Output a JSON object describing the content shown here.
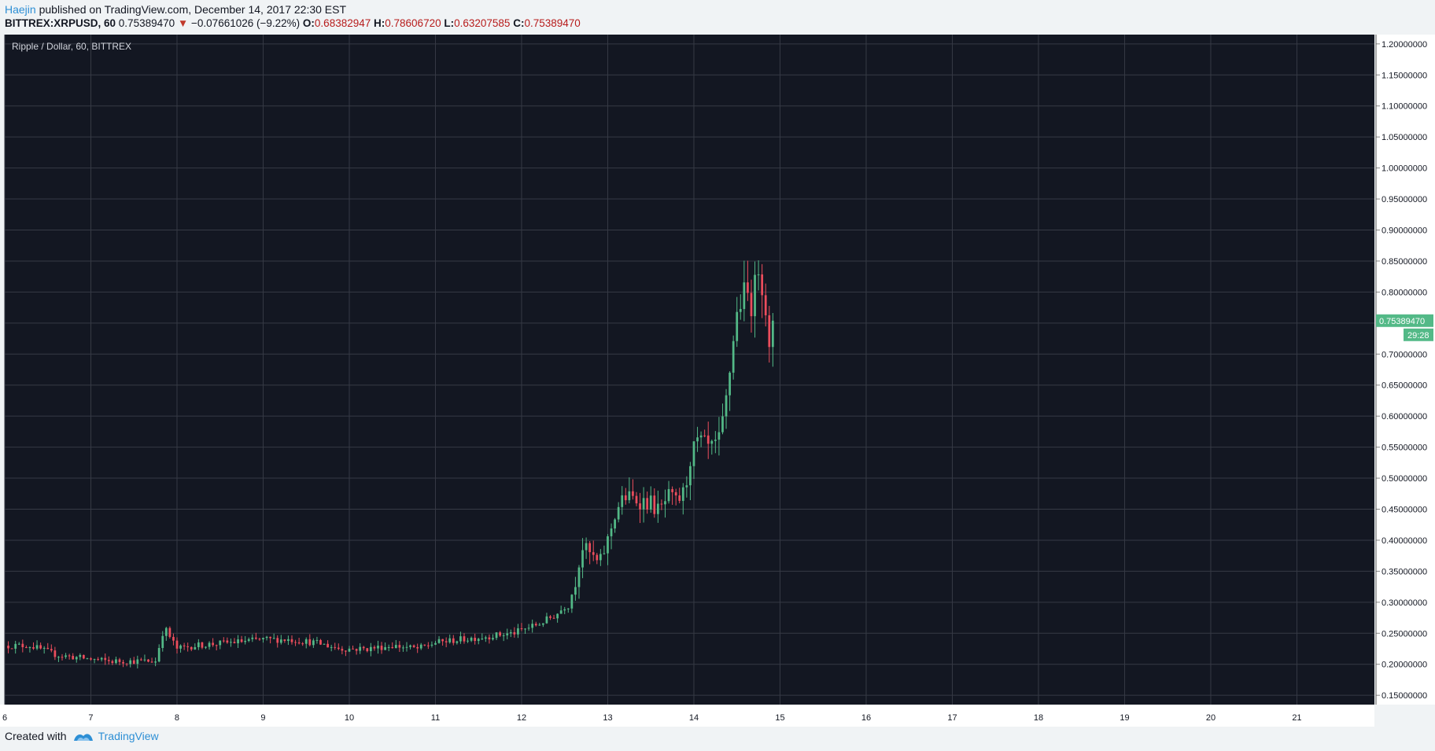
{
  "header": {
    "author": "Haejin",
    "published_text": "published on TradingView.com, December 14, 2017 22:30 EST",
    "symbol": "BITTREX:XRPUSD, 60",
    "last_price": "0.75389470",
    "change_arrow": "▼",
    "change": "−0.07661026 (−9.22%)",
    "o_label": "O:",
    "o_value": "0.68382947",
    "h_label": "H:",
    "h_value": "0.78606720",
    "l_label": "L:",
    "l_value": "0.63207585",
    "c_label": "C:",
    "c_value": "0.75389470"
  },
  "footer": {
    "created_with": "Created with",
    "brand": "TradingView"
  },
  "colors": {
    "background": "#131722",
    "grid": "#363a45",
    "up": "#53b987",
    "down": "#eb4d5c",
    "axis_text": "#131722",
    "price_tag": "#53b987"
  },
  "chart_data": {
    "type": "candlestick",
    "title": "Ripple / Dollar, 60, BITTREX",
    "x_tick_labels": [
      "6",
      "7",
      "8",
      "9",
      "10",
      "11",
      "12",
      "13",
      "14",
      "15",
      "16",
      "17",
      "18",
      "19",
      "20",
      "21"
    ],
    "y_tick_labels": [
      "0.15000000",
      "0.20000000",
      "0.25000000",
      "0.30000000",
      "0.35000000",
      "0.40000000",
      "0.45000000",
      "0.50000000",
      "0.55000000",
      "0.60000000",
      "0.65000000",
      "0.70000000",
      "0.75000000",
      "0.80000000",
      "0.85000000",
      "0.90000000",
      "0.95000000",
      "1.00000000",
      "1.05000000",
      "1.10000000",
      "1.15000000",
      "1.20000000"
    ],
    "xlim": [
      6.0,
      21.9
    ],
    "ylim": [
      0.135,
      1.215
    ],
    "current_price_label": "0.75389470",
    "countdown_label": "29:28",
    "current_price": 0.7539,
    "key_points": [
      [
        6.0,
        0.23
      ],
      [
        6.3,
        0.23
      ],
      [
        6.6,
        0.215
      ],
      [
        6.9,
        0.21
      ],
      [
        7.2,
        0.205
      ],
      [
        7.5,
        0.205
      ],
      [
        7.75,
        0.205
      ],
      [
        7.85,
        0.26
      ],
      [
        8.0,
        0.225
      ],
      [
        8.2,
        0.23
      ],
      [
        8.6,
        0.235
      ],
      [
        9.0,
        0.24
      ],
      [
        9.3,
        0.24
      ],
      [
        9.6,
        0.235
      ],
      [
        9.9,
        0.225
      ],
      [
        10.2,
        0.225
      ],
      [
        10.5,
        0.23
      ],
      [
        10.8,
        0.225
      ],
      [
        11.0,
        0.235
      ],
      [
        11.3,
        0.24
      ],
      [
        11.6,
        0.245
      ],
      [
        11.9,
        0.25
      ],
      [
        12.0,
        0.255
      ],
      [
        12.2,
        0.265
      ],
      [
        12.4,
        0.28
      ],
      [
        12.55,
        0.3
      ],
      [
        12.62,
        0.33
      ],
      [
        12.7,
        0.39
      ],
      [
        12.78,
        0.38
      ],
      [
        12.9,
        0.36
      ],
      [
        13.0,
        0.4
      ],
      [
        13.1,
        0.45
      ],
      [
        13.2,
        0.47
      ],
      [
        13.35,
        0.465
      ],
      [
        13.5,
        0.46
      ],
      [
        13.6,
        0.445
      ],
      [
        13.7,
        0.47
      ],
      [
        13.8,
        0.46
      ],
      [
        13.9,
        0.48
      ],
      [
        13.95,
        0.53
      ],
      [
        14.05,
        0.56
      ],
      [
        14.2,
        0.545
      ],
      [
        14.3,
        0.56
      ],
      [
        14.35,
        0.6
      ],
      [
        14.4,
        0.65
      ],
      [
        14.45,
        0.72
      ],
      [
        14.52,
        0.78
      ],
      [
        14.6,
        0.8
      ],
      [
        14.68,
        0.78
      ],
      [
        14.75,
        0.845
      ],
      [
        14.82,
        0.8
      ],
      [
        14.88,
        0.69
      ],
      [
        14.92,
        0.754
      ]
    ]
  }
}
